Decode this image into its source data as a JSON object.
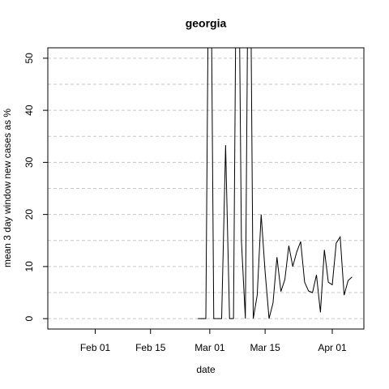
{
  "chart_data": {
    "type": "line",
    "title": "georgia",
    "x_label": "date",
    "y_label": "mean  3  day window new cases as %",
    "x": [
      "Feb 27",
      "Feb 28",
      "Feb 29",
      "Mar 01",
      "Mar 02",
      "Mar 03",
      "Mar 04",
      "Mar 05",
      "Mar 06",
      "Mar 07",
      "Mar 08",
      "Mar 09",
      "Mar 10",
      "Mar 11",
      "Mar 12",
      "Mar 13",
      "Mar 14",
      "Mar 15",
      "Mar 16",
      "Mar 17",
      "Mar 18",
      "Mar 19",
      "Mar 20",
      "Mar 21",
      "Mar 22",
      "Mar 23",
      "Mar 24",
      "Mar 25",
      "Mar 26",
      "Mar 27",
      "Mar 28",
      "Mar 29",
      "Mar 30",
      "Mar 31",
      "Apr 01",
      "Apr 02",
      "Apr 03",
      "Apr 04",
      "Apr 05",
      "Apr 06"
    ],
    "values": [
      0,
      0,
      0,
      100,
      0,
      0,
      0,
      33.3,
      0,
      0,
      100,
      15,
      0,
      100,
      0,
      4.5,
      20,
      9,
      0,
      3,
      11.8,
      5.2,
      7.5,
      14,
      10,
      12.8,
      14.8,
      7,
      5.3,
      5,
      8.4,
      1.2,
      13.2,
      7,
      6.5,
      14.5,
      15.7,
      4.5,
      7.3,
      8
    ],
    "color": "#000000",
    "xlim": [
      "Jan 20",
      "Apr 09"
    ],
    "xticks": [
      "Feb 01",
      "Feb 15",
      "Mar 01",
      "Mar 15",
      "Apr 01"
    ],
    "ylim": [
      -2,
      52
    ],
    "yticks": [
      0,
      10,
      20,
      30,
      40,
      50
    ],
    "ygrid": [
      0,
      5,
      10,
      15,
      20,
      25,
      30,
      35,
      40,
      45,
      50
    ],
    "grid": true
  }
}
